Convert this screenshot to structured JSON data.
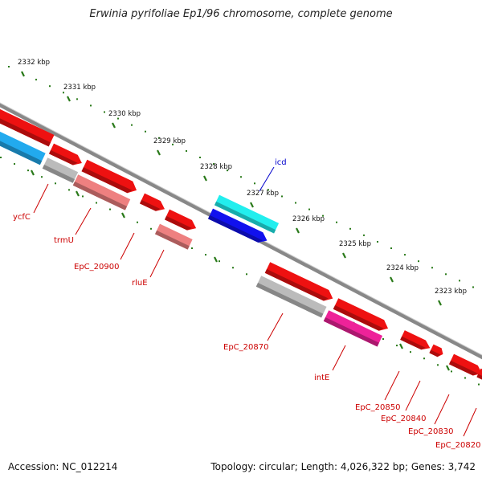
{
  "title": "Erwinia pyrifoliae Ep1/96 chromosome, complete genome",
  "footer": {
    "accession": "Accession: NC_012214",
    "summary": "Topology: circular; Length: 4,026,322 bp; Genes: 3,742"
  },
  "ticks": [
    "2332 kbp",
    "2331 kbp",
    "2330 kbp",
    "2329 kbp",
    "2328 kbp",
    "2327 kbp",
    "2326 kbp",
    "2325 kbp",
    "2324 kbp",
    "2323 kbp"
  ],
  "gene_labels": [
    {
      "name": "icd",
      "color": "#0000cc"
    },
    {
      "name": "ycfC",
      "color": "#cc0000"
    },
    {
      "name": "trmU",
      "color": "#cc0000"
    },
    {
      "name": "EpC_20900",
      "color": "#cc0000"
    },
    {
      "name": "rluE",
      "color": "#cc0000"
    },
    {
      "name": "EpC_20870",
      "color": "#cc0000"
    },
    {
      "name": "intE",
      "color": "#cc0000"
    },
    {
      "name": "EpC_20850",
      "color": "#cc0000"
    },
    {
      "name": "EpC_20840",
      "color": "#cc0000"
    },
    {
      "name": "EpC_20830",
      "color": "#cc0000"
    },
    {
      "name": "EpC_20820",
      "color": "#cc0000"
    }
  ],
  "colors": {
    "backbone": "#888888",
    "tick": "#2a7a1a",
    "red": "#ee1111",
    "pink": "#ee8080",
    "grey": "#bbbbbb",
    "cyan": "#22eeee",
    "blue": "#1111ee",
    "skyblue": "#22aaee",
    "magenta": "#ee2299"
  }
}
